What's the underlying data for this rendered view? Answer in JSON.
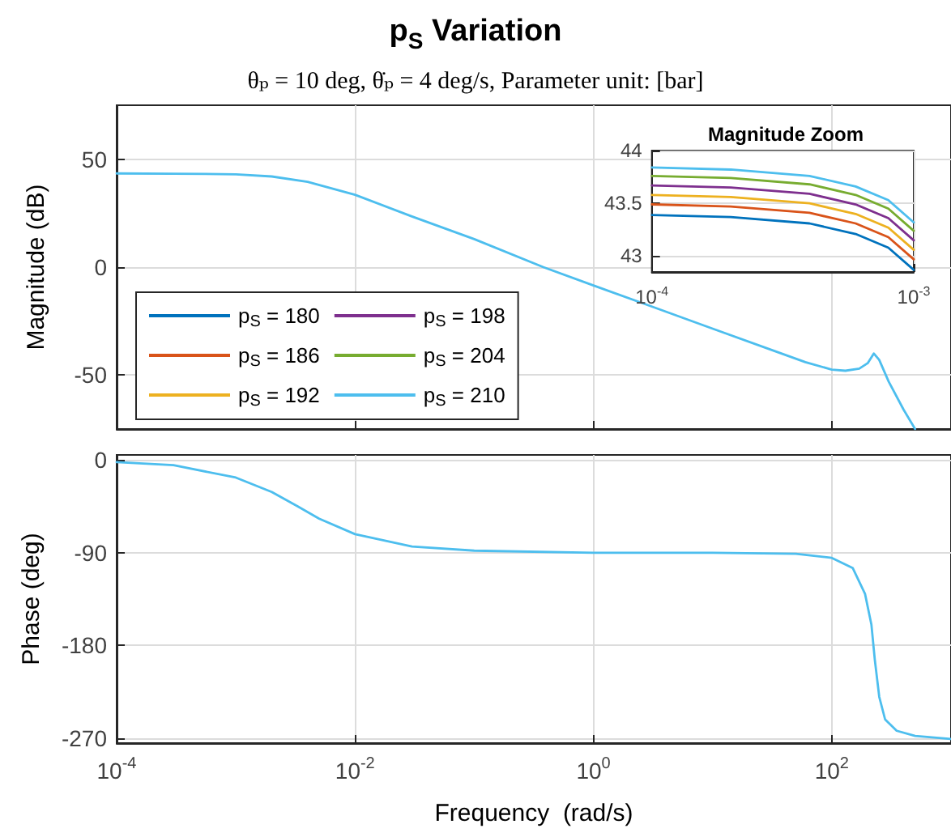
{
  "chart_data": [
    {
      "type": "line",
      "title": "p$_{S}$ Variation",
      "subtitle": "θₚ = 10 deg, θ̇ₚ = 4 deg/s, Parameter unit: [bar]",
      "ylabel": "Magnitude (dB)",
      "log": "x",
      "x": [
        0.0001,
        0.0003,
        0.001,
        0.002,
        0.004,
        0.01,
        0.03,
        0.1,
        0.38,
        1,
        3,
        10,
        30,
        60,
        100,
        130,
        170,
        200,
        225,
        250,
        300,
        400,
        500
      ],
      "xlim": [
        0.0001,
        1000
      ],
      "xticks": [
        {
          "value": 0.0001,
          "label": null
        },
        {
          "value": 0.01,
          "label": null
        },
        {
          "value": 1,
          "label": null
        },
        {
          "value": 100,
          "label": null
        }
      ],
      "ylim": [
        -75,
        75
      ],
      "yticks": [
        -50,
        0,
        50
      ],
      "tick_labels": "y",
      "grid": true,
      "legend": "bottom left",
      "series": [
        {
          "name": "p$_{S}$ = 180",
          "color": "#0072bd",
          "values": [
            null,
            null,
            null,
            null,
            null,
            null,
            null,
            null,
            null,
            null,
            null,
            null,
            null,
            null,
            null,
            null,
            null,
            null,
            null,
            null,
            null,
            null,
            null
          ]
        },
        {
          "name": "p$_{S}$ = 186",
          "color": "#d95319",
          "values": [
            null,
            null,
            null,
            null,
            null,
            null,
            null,
            null,
            null,
            null,
            null,
            null,
            null,
            null,
            null,
            null,
            null,
            null,
            null,
            null,
            null,
            null,
            null
          ]
        },
        {
          "name": "p$_{S}$ = 192",
          "color": "#edb120",
          "values": [
            null,
            null,
            null,
            null,
            null,
            null,
            null,
            null,
            null,
            null,
            null,
            null,
            null,
            null,
            null,
            null,
            null,
            null,
            null,
            null,
            null,
            null,
            null
          ]
        },
        {
          "name": "p$_{S}$ = 198",
          "color": "#7e2f8e",
          "values": [
            null,
            null,
            null,
            null,
            null,
            null,
            null,
            null,
            null,
            null,
            null,
            null,
            null,
            null,
            null,
            null,
            null,
            null,
            null,
            null,
            null,
            null,
            null
          ]
        },
        {
          "name": "p$_{S}$ = 204",
          "color": "#77ac30",
          "values": [
            null,
            null,
            null,
            null,
            null,
            null,
            null,
            null,
            null,
            null,
            null,
            null,
            null,
            null,
            null,
            null,
            null,
            null,
            null,
            null,
            null,
            null,
            null
          ]
        },
        {
          "name": "p$_{S}$ = 210",
          "color": "#4dbeee",
          "values": [
            43.4,
            43.3,
            43,
            42,
            39.5,
            33.5,
            23.5,
            13,
            0,
            -8.5,
            -18,
            -28.5,
            -38,
            -44,
            -47.5,
            -48,
            -47,
            -44.5,
            -40,
            -43,
            -53,
            -66,
            -75
          ]
        }
      ]
    },
    {
      "type": "line",
      "xlabel": "Frequency  (rad/s)",
      "ylabel": "Phase (deg)",
      "log": "x",
      "x": [
        0.0001,
        0.0003,
        0.001,
        0.002,
        0.0033,
        0.005,
        0.01,
        0.03,
        0.1,
        1,
        10,
        50,
        100,
        150,
        190,
        215,
        230,
        250,
        280,
        350,
        500,
        1000
      ],
      "xlim": [
        0.0001,
        1000
      ],
      "xticks": [
        {
          "value": 0.0001,
          "label": "10$^{-4}$"
        },
        {
          "value": 0.01,
          "label": "10$^{-2}$"
        },
        {
          "value": 1,
          "label": "10$^{0}$"
        },
        {
          "value": 100,
          "label": "10$^{2}$"
        }
      ],
      "ylim": [
        -275,
        5
      ],
      "yticks": [
        -270,
        -180,
        -90,
        0
      ],
      "grid": true,
      "series": [
        {
          "color": "#4dbeee",
          "values": [
            -2,
            -5,
            -17,
            -31,
            -45,
            -57,
            -72,
            -84,
            -88,
            -90,
            -90,
            -91,
            -95,
            -105,
            -130,
            -160,
            -195,
            -230,
            -252,
            -263,
            -268,
            -271
          ]
        }
      ]
    },
    {
      "type": "line",
      "title": "Magnitude Zoom",
      "log": "x",
      "x": [
        0.0001,
        0.0002,
        0.0004,
        0.0006,
        0.0008,
        0.001
      ],
      "xlim": [
        0.0001,
        0.001
      ],
      "xticks": [
        {
          "value": 0.0001,
          "label": "10$^{-4}$"
        },
        {
          "value": 0.001,
          "label": "10$^{-3}$"
        }
      ],
      "ylim": [
        42.85,
        44
      ],
      "yticks": [
        43,
        43.5,
        44
      ],
      "grid": true,
      "series": [
        {
          "color": "#0072bd",
          "values": [
            43.39,
            43.37,
            43.31,
            43.21,
            43.08,
            42.87
          ]
        },
        {
          "color": "#d95319",
          "values": [
            43.49,
            43.47,
            43.41,
            43.31,
            43.18,
            42.97
          ]
        },
        {
          "color": "#edb120",
          "values": [
            43.58,
            43.56,
            43.5,
            43.4,
            43.27,
            43.06
          ]
        },
        {
          "color": "#7e2f8e",
          "values": [
            43.67,
            43.65,
            43.59,
            43.49,
            43.36,
            43.15
          ]
        },
        {
          "color": "#77ac30",
          "values": [
            43.76,
            43.74,
            43.68,
            43.58,
            43.45,
            43.24
          ]
        },
        {
          "color": "#4dbeee",
          "values": [
            43.84,
            43.82,
            43.76,
            43.66,
            43.53,
            43.32
          ]
        }
      ]
    }
  ]
}
